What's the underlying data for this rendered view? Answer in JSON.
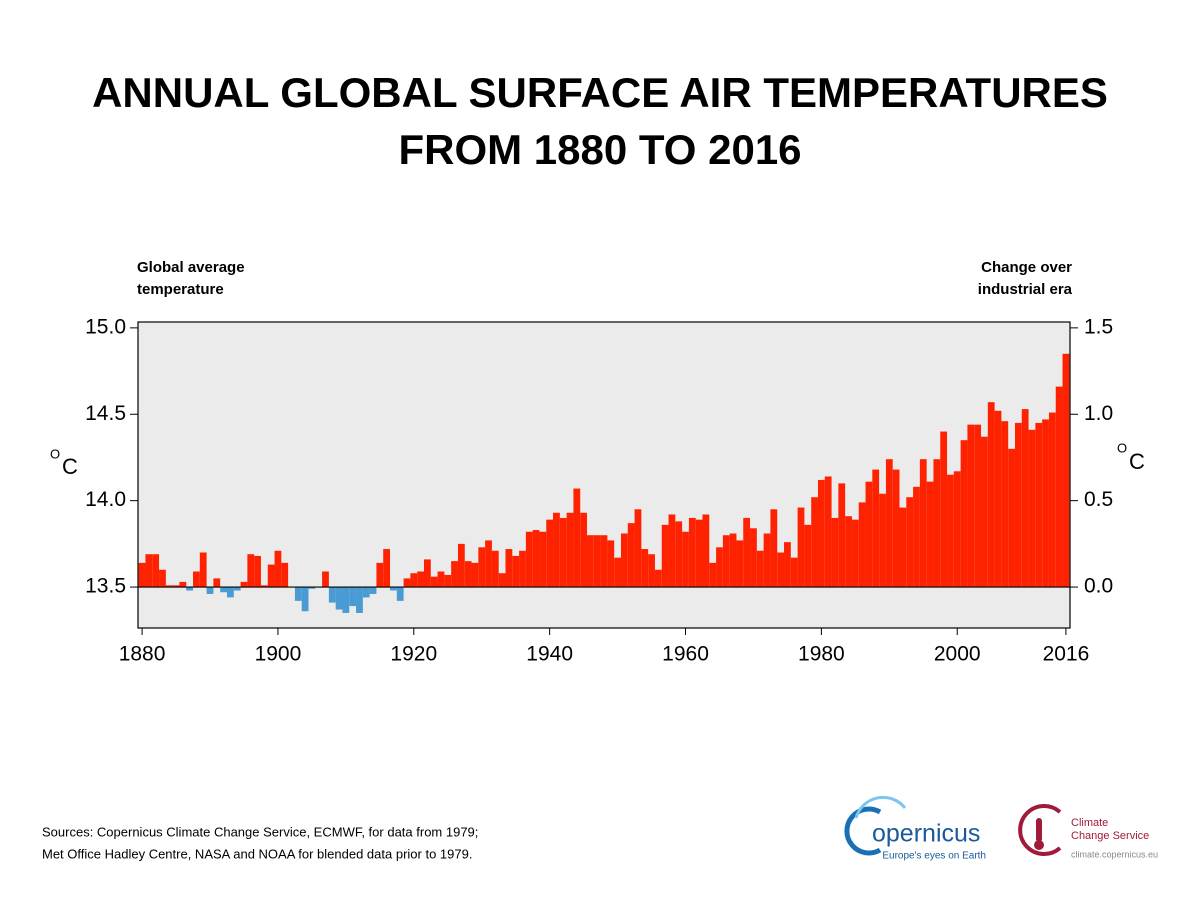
{
  "chart_data": {
    "type": "bar",
    "title": [
      "ANNUAL GLOBAL SURFACE AIR TEMPERATURES",
      "FROM 1880 TO 2016"
    ],
    "y_label": [
      "Global average",
      "temperature"
    ],
    "y2_label": [
      "Change over",
      "industrial era"
    ],
    "y_unit": {
      "sup": "O",
      "main": "C"
    },
    "y2_unit": {
      "sup": "O",
      "main": "C"
    },
    "x": [
      1880,
      1881,
      1882,
      1883,
      1884,
      1885,
      1886,
      1887,
      1888,
      1889,
      1890,
      1891,
      1892,
      1893,
      1894,
      1895,
      1896,
      1897,
      1898,
      1899,
      1900,
      1901,
      1902,
      1903,
      1904,
      1905,
      1906,
      1907,
      1908,
      1909,
      1910,
      1911,
      1912,
      1913,
      1914,
      1915,
      1916,
      1917,
      1918,
      1919,
      1920,
      1921,
      1922,
      1923,
      1924,
      1925,
      1926,
      1927,
      1928,
      1929,
      1930,
      1931,
      1932,
      1933,
      1934,
      1935,
      1936,
      1937,
      1938,
      1939,
      1940,
      1941,
      1942,
      1943,
      1944,
      1945,
      1946,
      1947,
      1948,
      1949,
      1950,
      1951,
      1952,
      1953,
      1954,
      1955,
      1956,
      1957,
      1958,
      1959,
      1960,
      1961,
      1962,
      1963,
      1964,
      1965,
      1966,
      1967,
      1968,
      1969,
      1970,
      1971,
      1972,
      1973,
      1974,
      1975,
      1976,
      1977,
      1978,
      1979,
      1980,
      1981,
      1982,
      1983,
      1984,
      1985,
      1986,
      1987,
      1988,
      1989,
      1990,
      1991,
      1992,
      1993,
      1994,
      1995,
      1996,
      1997,
      1998,
      1999,
      2000,
      2001,
      2002,
      2003,
      2004,
      2005,
      2006,
      2007,
      2008,
      2009,
      2010,
      2011,
      2012,
      2013,
      2014,
      2015,
      2016
    ],
    "values": [
      0.14,
      0.19,
      0.19,
      0.1,
      0.01,
      0.01,
      0.03,
      -0.02,
      0.09,
      0.2,
      -0.04,
      0.05,
      -0.03,
      -0.06,
      -0.02,
      0.03,
      0.19,
      0.18,
      0.01,
      0.13,
      0.21,
      0.14,
      0.0,
      -0.08,
      -0.14,
      -0.01,
      0.0,
      0.09,
      -0.09,
      -0.13,
      -0.15,
      -0.11,
      -0.15,
      -0.06,
      -0.04,
      0.14,
      0.22,
      -0.02,
      -0.08,
      0.05,
      0.08,
      0.09,
      0.16,
      0.06,
      0.09,
      0.07,
      0.15,
      0.25,
      0.15,
      0.14,
      0.23,
      0.27,
      0.21,
      0.08,
      0.22,
      0.18,
      0.21,
      0.32,
      0.33,
      0.32,
      0.39,
      0.43,
      0.4,
      0.43,
      0.57,
      0.43,
      0.3,
      0.3,
      0.3,
      0.27,
      0.17,
      0.31,
      0.37,
      0.45,
      0.22,
      0.19,
      0.1,
      0.36,
      0.42,
      0.38,
      0.32,
      0.4,
      0.39,
      0.42,
      0.14,
      0.23,
      0.3,
      0.31,
      0.27,
      0.4,
      0.34,
      0.21,
      0.31,
      0.45,
      0.2,
      0.26,
      0.17,
      0.46,
      0.36,
      0.52,
      0.62,
      0.64,
      0.4,
      0.6,
      0.41,
      0.39,
      0.49,
      0.61,
      0.68,
      0.54,
      0.74,
      0.68,
      0.46,
      0.52,
      0.58,
      0.74,
      0.61,
      0.74,
      0.9,
      0.65,
      0.67,
      0.85,
      0.94,
      0.94,
      0.87,
      1.07,
      1.02,
      0.96,
      0.8,
      0.95,
      1.03,
      0.91,
      0.95,
      0.97,
      1.01,
      1.16,
      1.35
    ],
    "axis": "y2",
    "colors": {
      "positive": "#ff2200",
      "negative": "#4a9ad4"
    },
    "xlim": [
      1879.4,
      2016.6
    ],
    "xticks": [
      1880,
      1900,
      1920,
      1940,
      1960,
      1980,
      2000,
      2016
    ],
    "ylim": [
      13.263,
      15.034
    ],
    "yticks": [
      {
        "value": 13.5,
        "label": "13.5"
      },
      {
        "value": 14.0,
        "label": "14.0"
      },
      {
        "value": 14.5,
        "label": "14.5"
      },
      {
        "value": 15.0,
        "label": "15.0"
      }
    ],
    "y2lim": [
      -0.237,
      1.534
    ],
    "y2ticks": [
      {
        "value": 0,
        "label": "0.0"
      },
      {
        "value": 0.5,
        "label": "0.5"
      },
      {
        "value": 1.0,
        "label": "1.0"
      },
      {
        "value": 1.5,
        "label": "1.5"
      }
    ],
    "sources": [
      "Sources: Copernicus Climate Change Service, ECMWF, for data from 1979;",
      "Met Office Hadley Centre, NASA and NOAA for blended data prior to 1979."
    ],
    "logos": {
      "copernicus": "opernicus",
      "copernicus_tagline": "Europe's eyes on Earth",
      "service": [
        "Climate",
        "Change Service"
      ],
      "url": "climate.copernicus.eu"
    }
  }
}
